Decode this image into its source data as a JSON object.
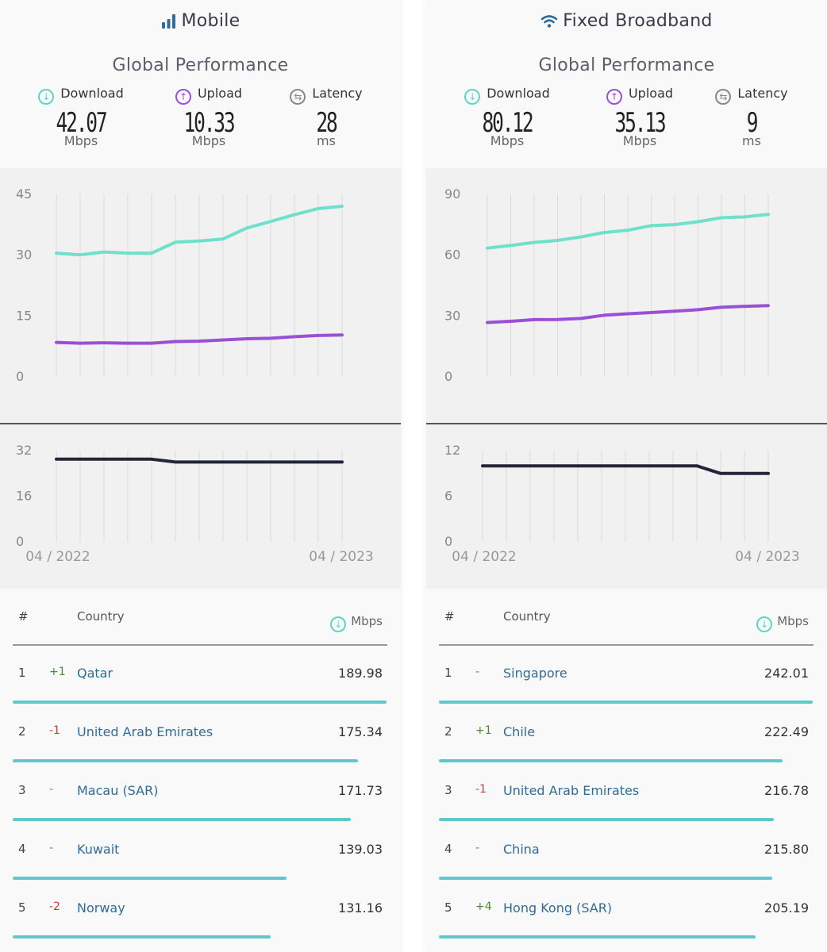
{
  "colors": {
    "download": "#6ee0cc",
    "upload": "#9b4fd6",
    "latency": "#23263a",
    "country_link": "#2f6c98",
    "bar": "#5ec8cc",
    "up": "#4a8a2a",
    "down": "#d23b3b"
  },
  "panels": {
    "mobile": {
      "title": "Mobile",
      "icon": "signal-bars-icon",
      "subtitle": "Global Performance",
      "metrics": {
        "download": {
          "label": "Download",
          "value": "42.07",
          "unit": "Mbps"
        },
        "upload": {
          "label": "Upload",
          "value": "10.33",
          "unit": "Mbps"
        },
        "latency": {
          "label": "Latency",
          "value": "28",
          "unit": "ms"
        }
      },
      "axis": {
        "start": "04 / 2022",
        "end": "04 / 2023"
      },
      "table": {
        "hash": "#",
        "country": "Country",
        "unit": "Mbps",
        "rows": [
          {
            "rank": "1",
            "change": "+1",
            "dir": "up",
            "country": "Qatar",
            "value": "189.98",
            "fraction": 1.0
          },
          {
            "rank": "2",
            "change": "-1",
            "dir": "down",
            "country": "United Arab Emirates",
            "value": "175.34",
            "fraction": 0.923
          },
          {
            "rank": "3",
            "change": "-",
            "dir": "none",
            "country": "Macau (SAR)",
            "value": "171.73",
            "fraction": 0.904
          },
          {
            "rank": "4",
            "change": "-",
            "dir": "none",
            "country": "Kuwait",
            "value": "139.03",
            "fraction": 0.732
          },
          {
            "rank": "5",
            "change": "-2",
            "dir": "down",
            "country": "Norway",
            "value": "131.16",
            "fraction": 0.69
          }
        ]
      }
    },
    "fixed": {
      "title": "Fixed Broadband",
      "icon": "wifi-icon",
      "subtitle": "Global Performance",
      "metrics": {
        "download": {
          "label": "Download",
          "value": "80.12",
          "unit": "Mbps"
        },
        "upload": {
          "label": "Upload",
          "value": "35.13",
          "unit": "Mbps"
        },
        "latency": {
          "label": "Latency",
          "value": "9",
          "unit": "ms"
        }
      },
      "axis": {
        "start": "04 / 2022",
        "end": "04 / 2023"
      },
      "table": {
        "hash": "#",
        "country": "Country",
        "unit": "Mbps",
        "rows": [
          {
            "rank": "1",
            "change": "-",
            "dir": "none",
            "country": "Singapore",
            "value": "242.01",
            "fraction": 1.0
          },
          {
            "rank": "2",
            "change": "+1",
            "dir": "up",
            "country": "Chile",
            "value": "222.49",
            "fraction": 0.919
          },
          {
            "rank": "3",
            "change": "-1",
            "dir": "down",
            "country": "United Arab Emirates",
            "value": "216.78",
            "fraction": 0.896
          },
          {
            "rank": "4",
            "change": "-",
            "dir": "none",
            "country": "China",
            "value": "215.80",
            "fraction": 0.892
          },
          {
            "rank": "5",
            "change": "+4",
            "dir": "up",
            "country": "Hong Kong (SAR)",
            "value": "205.19",
            "fraction": 0.848
          }
        ]
      }
    }
  },
  "chart_data": [
    {
      "type": "line",
      "x": [
        "04/2022",
        "05/2022",
        "06/2022",
        "07/2022",
        "08/2022",
        "09/2022",
        "10/2022",
        "11/2022",
        "12/2022",
        "01/2023",
        "02/2023",
        "03/2023",
        "04/2023"
      ],
      "series": [
        {
          "values": [
            30.5,
            30.1,
            30.8,
            30.5,
            30.5,
            33.2,
            33.5,
            34.0,
            36.7,
            38.3,
            40.0,
            41.5,
            42.07
          ]
        },
        {
          "values": [
            8.5,
            8.3,
            8.4,
            8.3,
            8.3,
            8.7,
            8.8,
            9.1,
            9.4,
            9.5,
            9.9,
            10.2,
            10.33
          ]
        }
      ],
      "ylim": [
        0,
        45
      ],
      "yticks": [
        0,
        15,
        30,
        45
      ]
    },
    {
      "type": "line",
      "x": [
        "04/2022",
        "05/2022",
        "06/2022",
        "07/2022",
        "08/2022",
        "09/2022",
        "10/2022",
        "11/2022",
        "12/2022",
        "01/2023",
        "02/2023",
        "03/2023",
        "04/2023"
      ],
      "series": [
        {
          "values": [
            29,
            29,
            29,
            29,
            29,
            28,
            28,
            28,
            28,
            28,
            28,
            28,
            28
          ]
        }
      ],
      "ylim": [
        0,
        32
      ],
      "yticks": [
        0,
        16,
        32
      ]
    },
    {
      "type": "line",
      "x": [
        "04/2022",
        "05/2022",
        "06/2022",
        "07/2022",
        "08/2022",
        "09/2022",
        "10/2022",
        "11/2022",
        "12/2022",
        "01/2023",
        "02/2023",
        "03/2023",
        "04/2023"
      ],
      "series": [
        {
          "values": [
            63.5,
            64.8,
            66.3,
            67.3,
            69.0,
            71.2,
            72.3,
            74.6,
            75.1,
            76.5,
            78.5,
            78.9,
            80.12
          ]
        },
        {
          "values": [
            26.8,
            27.4,
            28.2,
            28.3,
            28.8,
            30.4,
            31.1,
            31.7,
            32.4,
            33.1,
            34.3,
            34.8,
            35.13
          ]
        }
      ],
      "ylim": [
        0,
        90
      ],
      "yticks": [
        0,
        30,
        60,
        90
      ]
    },
    {
      "type": "line",
      "x": [
        "04/2022",
        "05/2022",
        "06/2022",
        "07/2022",
        "08/2022",
        "09/2022",
        "10/2022",
        "11/2022",
        "12/2022",
        "01/2023",
        "02/2023",
        "03/2023",
        "04/2023"
      ],
      "series": [
        {
          "values": [
            10,
            10,
            10,
            10,
            10,
            10,
            10,
            10,
            10,
            10,
            9,
            9,
            9
          ]
        }
      ],
      "ylim": [
        0,
        12
      ],
      "yticks": [
        0,
        6,
        12
      ]
    }
  ]
}
